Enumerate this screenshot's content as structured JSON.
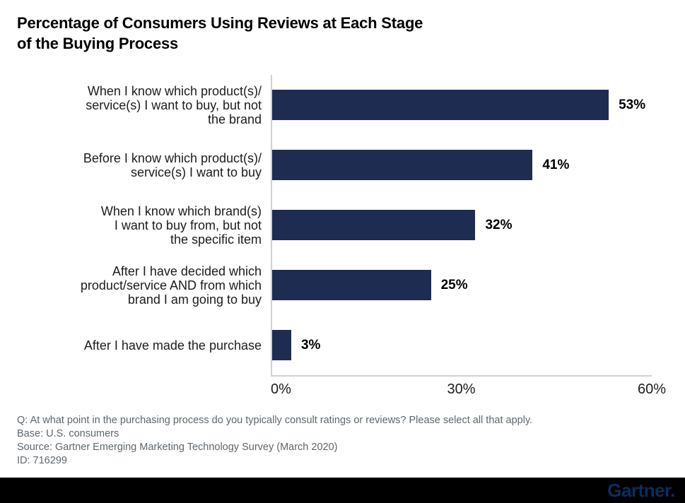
{
  "title": "Percentage of Consumers Using Reviews at Each Stage\nof the Buying Process",
  "chart_data": {
    "type": "bar",
    "orientation": "horizontal",
    "title": "Percentage of Consumers Using Reviews at Each Stage of the Buying Process",
    "categories": [
      "When I know which product(s)/\nservice(s) I want to buy, but not\nthe brand",
      "Before I know which product(s)/\nservice(s) I want to buy",
      "When I know which brand(s)\nI want to buy from, but not\nthe specific item",
      "After I have decided which\nproduct/service AND from which\nbrand I am going to buy",
      "After I have made the purchase"
    ],
    "values": [
      53,
      41,
      32,
      25,
      3
    ],
    "value_labels": [
      "53%",
      "41%",
      "32%",
      "25%",
      "3%"
    ],
    "x_ticks": [
      "0%",
      "30%",
      "60%"
    ],
    "xlim": [
      0,
      60
    ],
    "xlabel": "",
    "ylabel": "",
    "grid": false,
    "legend": "none",
    "bar_color": "#1e2c52",
    "axis_color": "#cdd0d4"
  },
  "footnotes": {
    "question": "Q: At what point in the purchasing process do you typically consult ratings or reviews? Please select all that apply.",
    "base": "Base: U.S. consumers",
    "source": "Source: Gartner Emerging Marketing Technology Survey (March 2020)",
    "id": "ID: 716299"
  },
  "footer": {
    "brand": "Gartner.",
    "brand_color": "#0b2d5e",
    "bar_color": "#000000"
  }
}
